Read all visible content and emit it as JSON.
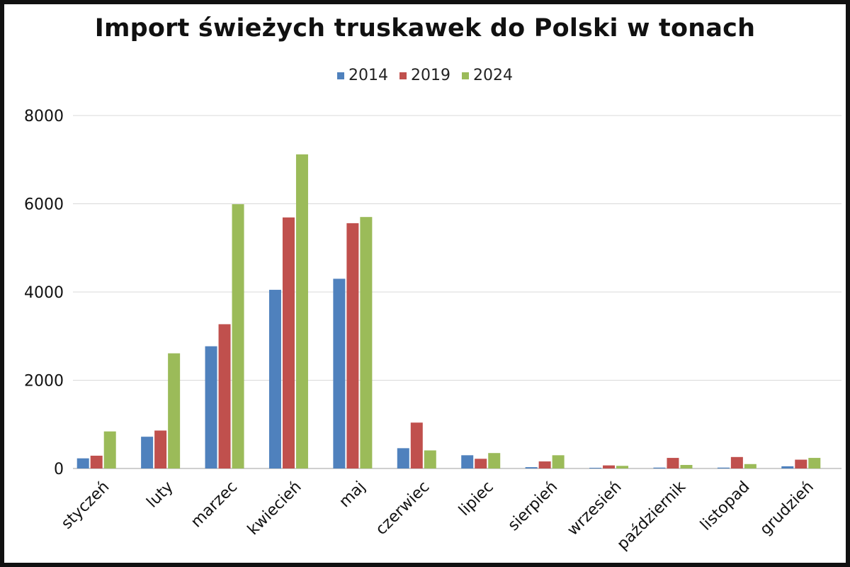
{
  "chart_data": {
    "type": "bar",
    "title": "Import świeżych truskawek do Polski w tonach",
    "categories": [
      "styczeń",
      "luty",
      "marzec",
      "kwiecień",
      "maj",
      "czerwiec",
      "lipiec",
      "sierpień",
      "wrzesień",
      "październik",
      "listopad",
      "grudzień"
    ],
    "series": [
      {
        "name": "2014",
        "color": "#4f81bd",
        "values": [
          230,
          720,
          2770,
          4050,
          4300,
          460,
          300,
          30,
          10,
          20,
          20,
          50
        ]
      },
      {
        "name": "2019",
        "color": "#c0504d",
        "values": [
          290,
          860,
          3270,
          5690,
          5560,
          1040,
          220,
          160,
          70,
          240,
          260,
          200
        ]
      },
      {
        "name": "2024",
        "color": "#9bbb59",
        "values": [
          840,
          2610,
          5990,
          7120,
          5700,
          410,
          350,
          300,
          60,
          80,
          100,
          240
        ]
      }
    ],
    "yticks": [
      "0",
      "2000",
      "4000",
      "6000",
      "8000"
    ],
    "ylim": [
      0,
      8000
    ],
    "grid": true,
    "legend_position": "top-center",
    "xlabel": "",
    "ylabel": ""
  }
}
